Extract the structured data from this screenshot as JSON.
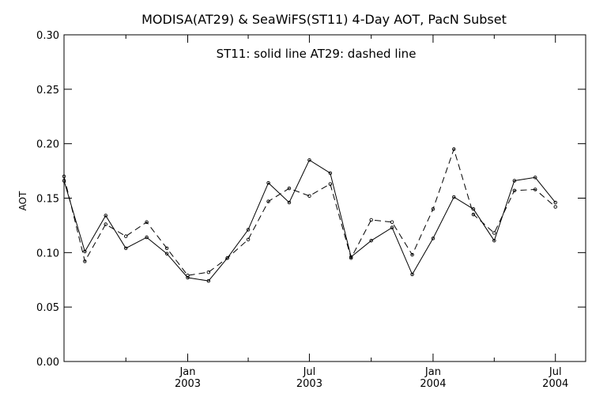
{
  "chart_data": {
    "type": "line",
    "title": "MODISA(AT29) & SeaWiFS(ST11) 4-Day AOT, PacN Subset",
    "annotation": "ST11: solid line   AT29: dashed line",
    "xlabel": "",
    "ylabel": "AOT",
    "xlim": [
      "2002-07-01",
      "2004-08-15"
    ],
    "ylim": [
      0.0,
      0.3
    ],
    "yticks": [
      {
        "value": 0.0,
        "label": "0.00"
      },
      {
        "value": 0.05,
        "label": "0.05"
      },
      {
        "value": 0.1,
        "label": "0.10"
      },
      {
        "value": 0.15,
        "label": "0.15"
      },
      {
        "value": 0.2,
        "label": "0.20"
      },
      {
        "value": 0.25,
        "label": "0.25"
      },
      {
        "value": 0.3,
        "label": "0.30"
      }
    ],
    "xticks_minor": [
      "2002-10-01",
      "2003-04-01",
      "2003-10-01",
      "2004-04-01"
    ],
    "xticks_major": [
      {
        "date": "2003-01-01",
        "month": "Jan",
        "year": "2003"
      },
      {
        "date": "2003-07-01",
        "month": "Jul",
        "year": "2003"
      },
      {
        "date": "2004-01-01",
        "month": "Jan",
        "year": "2004"
      },
      {
        "date": "2004-07-01",
        "month": "Jul",
        "year": "2004"
      }
    ],
    "grid": false,
    "series": [
      {
        "name": "ST11",
        "style": "solid",
        "points": [
          [
            "2002-07-01",
            0.166
          ],
          [
            "2002-08-01",
            0.101
          ],
          [
            "2002-09-01",
            0.134
          ],
          [
            "2002-10-01",
            0.104
          ],
          [
            "2002-11-01",
            0.114
          ],
          [
            "2002-12-01",
            0.099
          ],
          [
            "2003-01-01",
            0.077
          ],
          [
            "2003-02-01",
            0.074
          ],
          [
            "2003-03-01",
            0.095
          ],
          [
            "2003-04-01",
            0.121
          ],
          [
            "2003-05-01",
            0.164
          ],
          [
            "2003-06-01",
            0.146
          ],
          [
            "2003-07-01",
            0.185
          ],
          [
            "2003-08-01",
            0.173
          ],
          [
            "2003-09-01",
            0.096
          ],
          [
            "2003-10-01",
            0.111
          ],
          [
            "2003-11-01",
            0.123
          ],
          [
            "2003-12-01",
            0.08
          ],
          [
            "2004-01-01",
            0.113
          ],
          [
            "2004-02-01",
            0.151
          ],
          [
            "2004-03-01",
            0.14
          ],
          [
            "2004-04-01",
            0.111
          ],
          [
            "2004-05-01",
            0.166
          ],
          [
            "2004-06-01",
            0.169
          ],
          [
            "2004-07-01",
            0.146
          ]
        ]
      },
      {
        "name": "AT29",
        "style": "dashed",
        "points": [
          [
            "2002-07-01",
            0.17
          ],
          [
            "2002-08-01",
            0.092
          ],
          [
            "2002-09-01",
            0.126
          ],
          [
            "2002-10-01",
            0.115
          ],
          [
            "2002-11-01",
            0.128
          ],
          [
            "2002-12-01",
            0.104
          ],
          [
            "2003-01-01",
            0.079
          ],
          [
            "2003-02-01",
            0.082
          ],
          [
            "2003-03-01",
            0.095
          ],
          [
            "2003-04-01",
            0.112
          ],
          [
            "2003-05-01",
            0.147
          ],
          [
            "2003-06-01",
            0.159
          ],
          [
            "2003-07-01",
            0.152
          ],
          [
            "2003-08-01",
            0.163
          ],
          [
            "2003-09-01",
            0.095
          ],
          [
            "2003-10-01",
            0.13
          ],
          [
            "2003-11-01",
            0.128
          ],
          [
            "2003-12-01",
            0.098
          ],
          [
            "2004-01-01",
            0.14
          ],
          [
            "2004-02-01",
            0.195
          ],
          [
            "2004-03-01",
            0.135
          ],
          [
            "2004-04-01",
            0.118
          ],
          [
            "2004-05-01",
            0.157
          ],
          [
            "2004-06-01",
            0.158
          ],
          [
            "2004-07-01",
            0.142
          ]
        ]
      }
    ]
  }
}
